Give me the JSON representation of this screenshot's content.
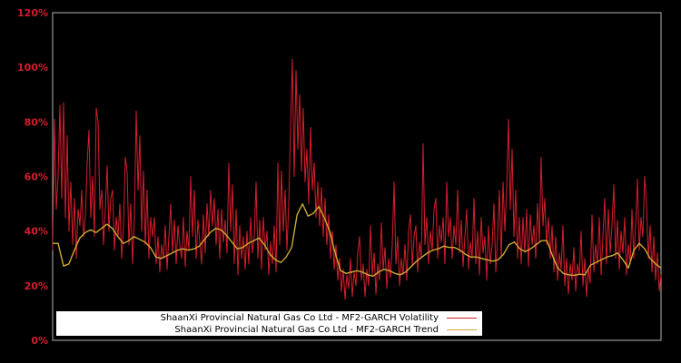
{
  "chart_data": {
    "type": "line",
    "title": "",
    "unit": "percent",
    "ylim": [
      0,
      120
    ],
    "yticks": [
      "0%",
      "20%",
      "40%",
      "60%",
      "80%",
      "100%",
      "120%"
    ],
    "ytick_values": [
      0,
      20,
      40,
      60,
      80,
      100,
      120
    ],
    "xticks": [],
    "grid": "off",
    "legend_position": "lower-left",
    "colors": {
      "background": "#000000",
      "frame": "#b3b3b3",
      "ytick_label": "#d41e2d",
      "legend_background": "#ffffff",
      "legend_text": "#000000"
    },
    "series": [
      {
        "name": "ShaanXi Provincial Natural Gas Co Ltd - MF2-GARCH Volatility",
        "color": "#d41e2d",
        "stroke_width": 1,
        "values": [
          33,
          81,
          48,
          60,
          86,
          52,
          87,
          45,
          75,
          40,
          58,
          35,
          52,
          30,
          48,
          42,
          55,
          38,
          45,
          65,
          77,
          45,
          60,
          38,
          85,
          80,
          48,
          55,
          35,
          48,
          64,
          40,
          52,
          55,
          33,
          45,
          38,
          50,
          30,
          42,
          67,
          62,
          35,
          50,
          28,
          45,
          84,
          55,
          75,
          40,
          62,
          35,
          55,
          30,
          45,
          38,
          45,
          28,
          38,
          25,
          35,
          30,
          42,
          26,
          38,
          50,
          32,
          44,
          28,
          42,
          35,
          30,
          45,
          27,
          40,
          33,
          60,
          38,
          55,
          30,
          44,
          36,
          28,
          46,
          32,
          50,
          38,
          55,
          42,
          52,
          35,
          48,
          30,
          48,
          36,
          44,
          32,
          65,
          40,
          57,
          28,
          48,
          24,
          42,
          30,
          38,
          26,
          40,
          28,
          45,
          32,
          38,
          58,
          30,
          44,
          26,
          45,
          33,
          40,
          24,
          36,
          28,
          42,
          25,
          65,
          35,
          62,
          40,
          55,
          33,
          50,
          78,
          103,
          60,
          99,
          70,
          90,
          62,
          85,
          58,
          70,
          50,
          78,
          55,
          65,
          45,
          58,
          42,
          56,
          38,
          52,
          35,
          46,
          30,
          40,
          26,
          35,
          22,
          30,
          18,
          26,
          15,
          24,
          19,
          30,
          16,
          25,
          20,
          32,
          38,
          22,
          28,
          16,
          26,
          20,
          42,
          24,
          32,
          17,
          28,
          22,
          43,
          26,
          34,
          19,
          30,
          23,
          35,
          58,
          28,
          38,
          20,
          30,
          24,
          35,
          22,
          40,
          46,
          27,
          38,
          42,
          25,
          36,
          30,
          72,
          35,
          45,
          28,
          40,
          33,
          48,
          52,
          30,
          42,
          36,
          45,
          28,
          58,
          38,
          45,
          30,
          42,
          35,
          55,
          32,
          44,
          27,
          38,
          48,
          26,
          36,
          30,
          52,
          28,
          40,
          24,
          45,
          32,
          38,
          22,
          42,
          28,
          35,
          50,
          25,
          38,
          55,
          30,
          58,
          40,
          55,
          81,
          48,
          70,
          38,
          55,
          30,
          45,
          28,
          45,
          32,
          48,
          27,
          46,
          35,
          42,
          30,
          50,
          36,
          67,
          42,
          52,
          35,
          45,
          30,
          42,
          25,
          38,
          22,
          32,
          26,
          42,
          20,
          30,
          17,
          28,
          22,
          34,
          18,
          28,
          24,
          40,
          20,
          30,
          16,
          26,
          21,
          46,
          25,
          35,
          28,
          45,
          24,
          38,
          52,
          28,
          48,
          32,
          42,
          57,
          30,
          44,
          26,
          40,
          32,
          45,
          24,
          35,
          28,
          48,
          30,
          42,
          59,
          33,
          45,
          38,
          60,
          50,
          30,
          42,
          25,
          38,
          22,
          32,
          18,
          24
        ]
      },
      {
        "name": "ShaanXi Provincial Natural Gas Co Ltd - MF2-GARCH Trend",
        "color": "#ccaa33",
        "stroke_width": 1.4,
        "values": [
          35.5,
          35.5,
          27.2,
          28,
          33,
          37.5,
          39.5,
          40.5,
          39.5,
          41,
          42.5,
          41,
          38,
          35.5,
          36.5,
          38,
          37,
          36,
          34,
          30.5,
          30,
          31,
          32,
          33,
          33.5,
          33,
          33.5,
          34.5,
          37,
          39.5,
          41,
          40.5,
          38.5,
          36,
          33.5,
          34,
          35.5,
          36.5,
          37.5,
          35,
          31.5,
          29.5,
          28.5,
          30.5,
          34,
          46,
          50,
          45.5,
          46.5,
          49,
          45,
          40,
          32,
          25.5,
          24.5,
          25,
          25.5,
          25,
          24,
          23.5,
          25,
          26,
          25.5,
          24.5,
          24,
          25,
          27,
          29,
          30.5,
          32,
          33,
          33.5,
          34.5,
          34,
          34,
          33,
          31.5,
          30.5,
          30.5,
          30,
          29.5,
          29,
          29.5,
          31.5,
          35,
          36,
          33.5,
          32.5,
          33.5,
          35,
          36.5,
          36.5,
          31,
          26.5,
          24.5,
          24,
          23.8,
          24.2,
          24,
          27.5,
          28.5,
          29.5,
          30.5,
          31,
          32,
          29.5,
          26.5,
          33,
          35.5,
          33.5,
          30,
          28,
          26.5
        ]
      }
    ]
  },
  "legend": {
    "volatility_label": "ShaanXi Provincial Natural Gas Co Ltd - MF2-GARCH Volatility",
    "trend_label": "ShaanXi Provincial Natural Gas Co Ltd - MF2-GARCH Trend"
  }
}
